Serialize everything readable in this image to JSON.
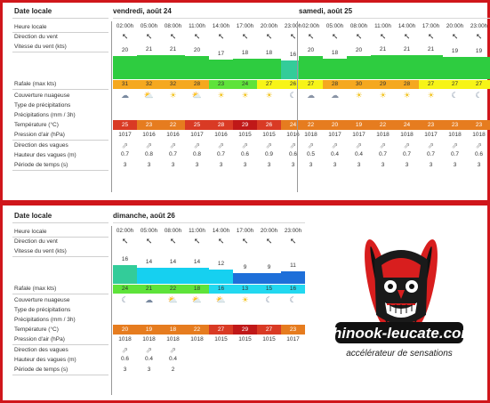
{
  "labels": [
    "Heure locale",
    "Direction du vent",
    "Vitesse du vent  (kts)",
    "Rafale  (max kts)",
    "Couverture nuageuse",
    "Type de précipitations",
    "Précipitations  (mm / 3h)",
    "Température  (°C)",
    "Pression d'air  (hPa)",
    "Direction des vagues",
    "Hauteur des vagues  (m)",
    "Période de temps  (s)"
  ],
  "date_label": "Date locale",
  "times": [
    "02:00h",
    "05:00h",
    "08:00h",
    "11:00h",
    "14:00h",
    "17:00h",
    "20:00h",
    "23:00h"
  ],
  "colors": {
    "speed_green": "#2ecc40",
    "speed_teal": "#33cc99",
    "speed_cyan": "#16d0f0",
    "speed_blue": "#1e6fd9",
    "gust_orange": "#f5a81f",
    "gust_yellow": "#f7f417",
    "gust_green": "#5ee33a",
    "gust_cyan": "#22d8f0",
    "temp_red": "#d93a24",
    "temp_orange": "#e67c1f",
    "temp_dark": "#c01818"
  },
  "days": [
    {
      "title": "vendredi, août 24",
      "wind": [
        "20",
        "21",
        "21",
        "20",
        "17",
        "18",
        "18",
        "16"
      ],
      "gust": [
        "31",
        "32",
        "32",
        "28",
        "23",
        "24",
        "27",
        "26"
      ],
      "clouds": [
        "partly-cloudy",
        "sunny-cloud",
        "sun",
        "sun-cloud",
        "sun",
        "sun",
        "sun",
        "moon"
      ],
      "temp": [
        "25",
        "23",
        "22",
        "25",
        "28",
        "29",
        "26",
        "24"
      ],
      "pressure": [
        "1017",
        "1016",
        "1016",
        "1017",
        "1016",
        "1015",
        "1015",
        "1016"
      ],
      "wave_h": [
        "0.7",
        "0.8",
        "0.7",
        "0.8",
        "0.7",
        "0.6",
        "0.9",
        "0.6"
      ],
      "period": [
        "3",
        "3",
        "3",
        "3",
        "3",
        "3",
        "3",
        "3"
      ]
    },
    {
      "title": "samedi, août 25",
      "wind": [
        "20",
        "18",
        "20",
        "21",
        "21",
        "21",
        "19",
        "19"
      ],
      "gust": [
        "27",
        "28",
        "30",
        "29",
        "28",
        "27",
        "27",
        "27"
      ],
      "clouds": [
        "cloud",
        "cloud",
        "sun",
        "sun",
        "sun",
        "sun",
        "moon",
        "moon"
      ],
      "temp": [
        "22",
        "20",
        "19",
        "22",
        "24",
        "23",
        "23",
        "23"
      ],
      "pressure": [
        "1018",
        "1017",
        "1017",
        "1018",
        "1018",
        "1017",
        "1018",
        "1018"
      ],
      "wave_h": [
        "0.5",
        "0.4",
        "0.4",
        "0.7",
        "0.7",
        "0.7",
        "0.7",
        "0.6"
      ],
      "period": [
        "3",
        "3",
        "3",
        "3",
        "3",
        "3",
        "3",
        "3"
      ]
    },
    {
      "title": "dimanche, août 26",
      "wind": [
        "16",
        "14",
        "14",
        "14",
        "12",
        "9",
        "9",
        "11"
      ],
      "gust": [
        "24",
        "21",
        "22",
        "18",
        "16",
        "13",
        "15",
        "16"
      ],
      "clouds": [
        "moon",
        "partly-cloudy",
        "sun-cloud",
        "sun-cloud",
        "sun-cloud",
        "sun",
        "moon",
        "moon"
      ],
      "temp": [
        "20",
        "19",
        "18",
        "22",
        "27",
        "29",
        "27",
        "23"
      ],
      "pressure": [
        "1018",
        "1018",
        "1018",
        "1018",
        "1015",
        "1015",
        "1015",
        "1017"
      ],
      "wave_h": [
        "0.6",
        "0.4",
        "0.4"
      ],
      "period": [
        "3",
        "3",
        "2"
      ]
    }
  ],
  "logo": {
    "name": "chinook-leucate.com",
    "tagline": "accélérateur de sensations"
  }
}
